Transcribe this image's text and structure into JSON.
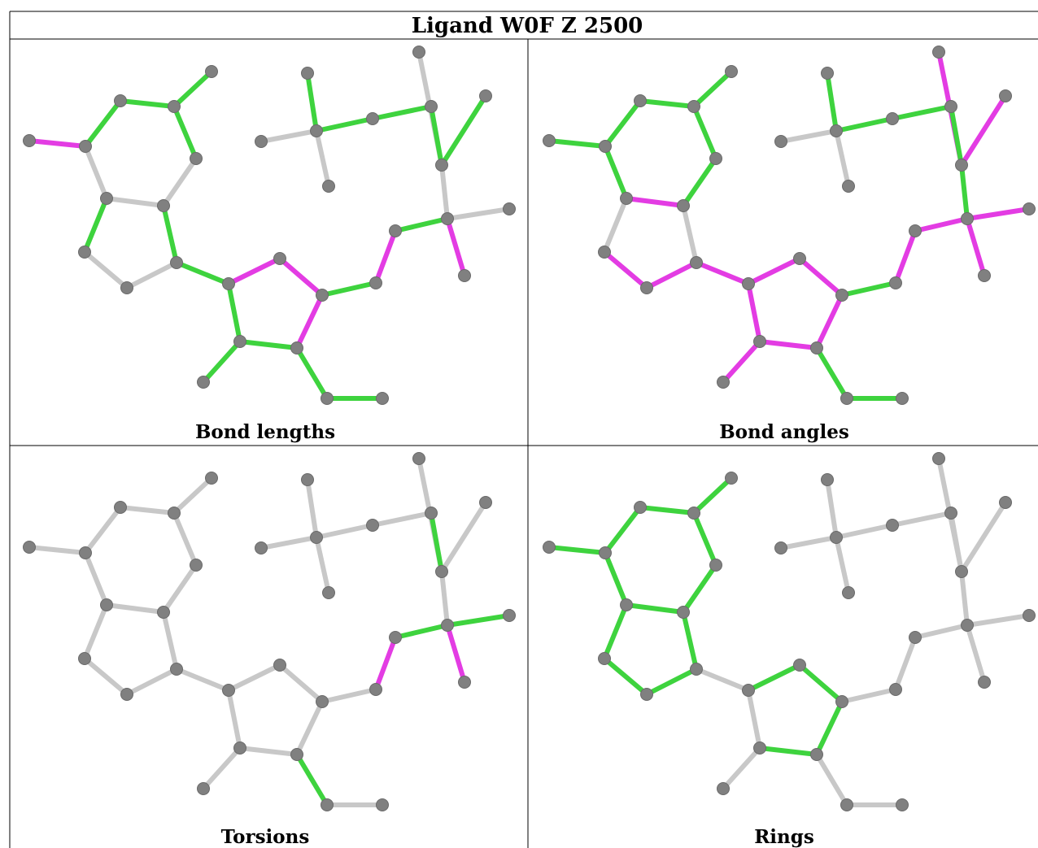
{
  "title": "Ligand W0F Z 2500",
  "colors": {
    "atom": "#808080",
    "bond_default": "#c8c8c8",
    "green": "#3ed33e",
    "magenta": "#e33ce3"
  },
  "panels": [
    {
      "caption": "Bond lengths",
      "green": [
        "e1",
        "e2",
        "e3",
        "e7",
        "e10",
        "e11",
        "e15",
        "e16",
        "e17",
        "e18",
        "e19",
        "e20",
        "e21",
        "e23",
        "e28",
        "e29",
        "e30",
        "e31",
        "e32"
      ],
      "magenta": [
        "e0",
        "e12",
        "e13",
        "e14",
        "e22",
        "e25"
      ]
    },
    {
      "caption": "Bond angles",
      "green": [
        "e0",
        "e1",
        "e2",
        "e3",
        "e4",
        "e6",
        "e11",
        "e19",
        "e20",
        "e21",
        "e26",
        "e29",
        "e30",
        "e31",
        "e32"
      ],
      "magenta": [
        "e5",
        "e8",
        "e9",
        "e12",
        "e13",
        "e14",
        "e15",
        "e16",
        "e17",
        "e18",
        "e22",
        "e23",
        "e24",
        "e25",
        "e27",
        "e28"
      ]
    },
    {
      "caption": "Torsions",
      "green": [
        "e19",
        "e23",
        "e24",
        "e29"
      ],
      "magenta": [
        "e22",
        "e25"
      ]
    },
    {
      "caption": "Rings",
      "green": [
        "e0",
        "e1",
        "e2",
        "e3",
        "e4",
        "e5",
        "e6",
        "e7",
        "e8",
        "e9",
        "e10",
        "e11",
        "e12",
        "e13",
        "e14",
        "e15"
      ],
      "magenta": []
    }
  ]
}
